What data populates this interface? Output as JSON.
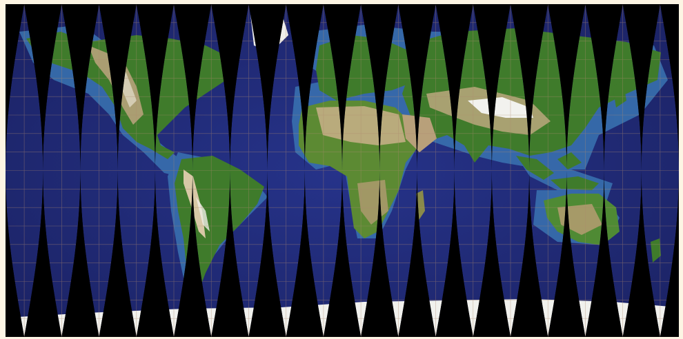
{
  "map": {
    "projection": "interrupted-sinusoidal-gores",
    "gore_count": 18,
    "gore_width_degrees": 20,
    "graticule_spacing_degrees": 10,
    "background_color": "#fdf5e4",
    "space_color": "#000000",
    "colors": {
      "deep_ocean": "#1c2467",
      "mid_ocean": "#232f7f",
      "shelf": "#3a78b4",
      "land_low": "#3d7a2a",
      "land_mid": "#8a8450",
      "land_high": "#c9b898",
      "ice": "#f2f2ee",
      "graticule": "#b08a70"
    }
  }
}
